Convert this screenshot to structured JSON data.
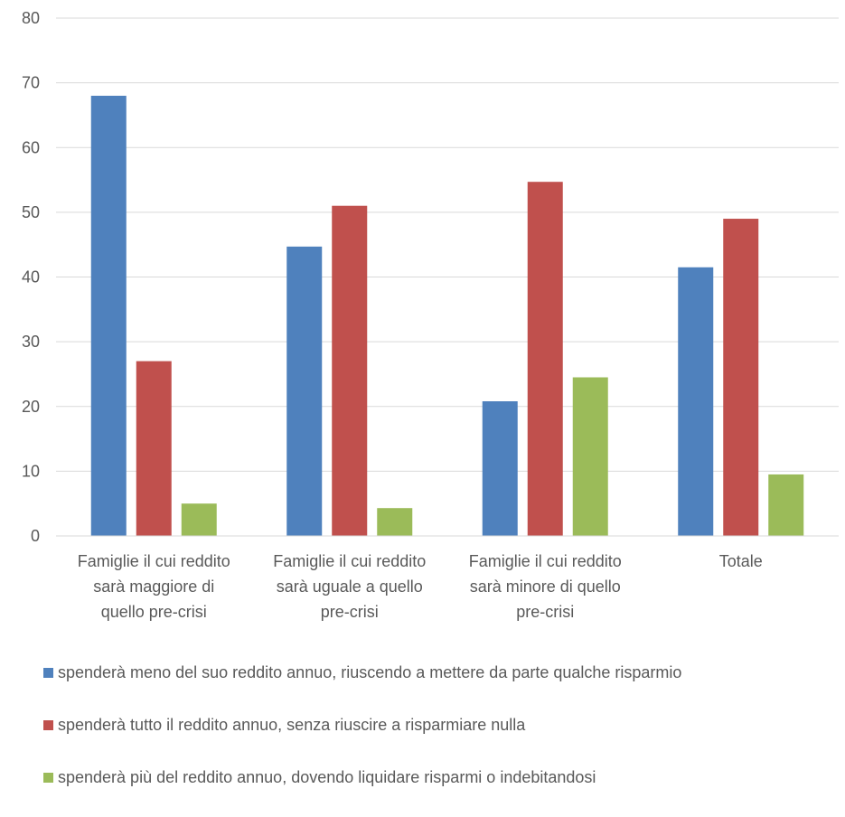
{
  "chart_data": {
    "type": "bar",
    "title": "",
    "xlabel": "",
    "ylabel": "",
    "ylim": [
      0,
      80
    ],
    "yticks": [
      0,
      10,
      20,
      30,
      40,
      50,
      60,
      70,
      80
    ],
    "grid": true,
    "legend_position": "bottom",
    "categories": [
      [
        "Famiglie il cui reddito",
        "sarà maggiore di",
        "quello pre-crisi"
      ],
      [
        "Famiglie il cui reddito",
        "sarà uguale a quello",
        "pre-crisi"
      ],
      [
        "Famiglie il cui reddito",
        "sarà minore di quello",
        "pre-crisi"
      ],
      [
        "Totale"
      ]
    ],
    "series": [
      {
        "name": "spenderà meno del suo reddito annuo, riuscendo a mettere da parte qualche risparmio",
        "color": "#4f81bd",
        "values": [
          68,
          44.7,
          20.8,
          41.5
        ]
      },
      {
        "name": "spenderà tutto il reddito annuo, senza riuscire a risparmiare nulla",
        "color": "#c0504d",
        "values": [
          27,
          51,
          54.7,
          49
        ]
      },
      {
        "name": "spenderà più del reddito annuo, dovendo liquidare risparmi o indebitandosi",
        "color": "#9bbb59",
        "values": [
          5,
          4.3,
          24.5,
          9.5
        ]
      }
    ]
  }
}
